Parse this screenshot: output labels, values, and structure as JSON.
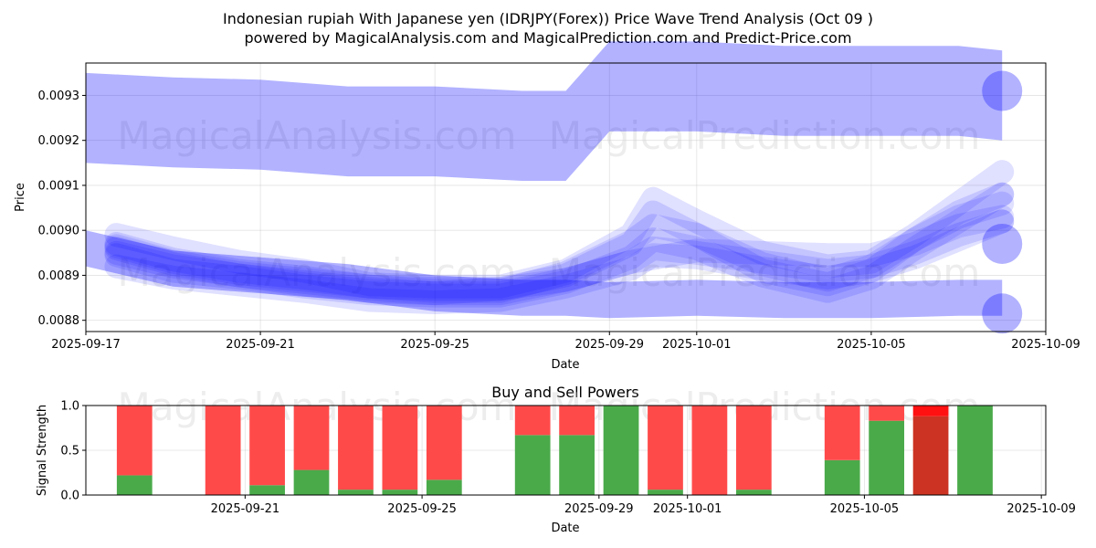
{
  "title_line1": "Indonesian rupiah With Japanese yen (IDRJPY(Forex)) Price Wave Trend Analysis (Oct 09 )",
  "title_line2": "powered by MagicalAnalysis.com and MagicalPrediction.com and Predict-Price.com",
  "watermark_left": "MagicalAnalysis.com",
  "watermark_right": "MagicalPrediction.com",
  "colors": {
    "wave": "#0000ff",
    "buy": "#4aaa4a",
    "sell": "#ff4a4a",
    "buy_dark": "#cc3322",
    "sell_bright": "#ff1111"
  },
  "chart_data": [
    {
      "type": "line",
      "title": "",
      "xlabel": "Date",
      "ylabel": "Price",
      "x_start": "2025-09-17",
      "x_end": "2025-10-09",
      "xlim_days": [
        0,
        22
      ],
      "ylim": [
        0.008775,
        0.009372
      ],
      "x_ticks": [
        {
          "day": 0,
          "label": "2025-09-17"
        },
        {
          "day": 4,
          "label": "2025-09-21"
        },
        {
          "day": 8,
          "label": "2025-09-25"
        },
        {
          "day": 12,
          "label": "2025-09-29"
        },
        {
          "day": 14,
          "label": "2025-10-01"
        },
        {
          "day": 18,
          "label": "2025-10-05"
        },
        {
          "day": 22,
          "label": "2025-10-09"
        }
      ],
      "y_ticks": [
        {
          "value": 0.0088,
          "label": "0.0088"
        },
        {
          "value": 0.0089,
          "label": "0.0089"
        },
        {
          "value": 0.009,
          "label": "0.0090"
        },
        {
          "value": 0.0091,
          "label": "0.0091"
        },
        {
          "value": 0.0092,
          "label": "0.0092"
        },
        {
          "value": 0.0093,
          "label": "0.0093"
        }
      ],
      "grid": true,
      "bands": [
        {
          "name": "upper-wave",
          "x": [
            0,
            2,
            4,
            6,
            8,
            10,
            11,
            12,
            14,
            16,
            18,
            20,
            21
          ],
          "center": [
            0.00925,
            0.00924,
            0.009235,
            0.00922,
            0.00922,
            0.00921,
            0.00921,
            0.00932,
            0.00932,
            0.00931,
            0.00931,
            0.00931,
            0.0093
          ],
          "half": 0.0001
        },
        {
          "name": "lower-wave",
          "x": [
            0,
            2,
            4,
            6,
            8,
            10,
            11,
            12,
            14,
            16,
            18,
            20,
            21
          ],
          "center": [
            0.00896,
            0.008915,
            0.0089,
            0.008885,
            0.00886,
            0.00885,
            0.00885,
            0.008845,
            0.00885,
            0.008845,
            0.008845,
            0.00885,
            0.00885
          ],
          "half": 4e-05
        }
      ],
      "series": [
        {
          "name": "wave-1",
          "x": [
            0.7,
            2,
            3.5,
            5,
            6.5,
            8,
            9.5,
            11,
            12.5,
            14,
            15.5,
            17,
            18,
            19,
            20,
            21
          ],
          "values": [
            0.008965,
            0.00893,
            0.008905,
            0.00889,
            0.008875,
            0.00887,
            0.00887,
            0.00889,
            0.00893,
            0.008955,
            0.00895,
            0.008945,
            0.008945,
            0.00897,
            0.00901,
            0.00903
          ]
        },
        {
          "name": "wave-2",
          "x": [
            0.7,
            2,
            3.5,
            5,
            6.5,
            8,
            9.5,
            11,
            12.5,
            13,
            14,
            15.5,
            17,
            18,
            19,
            20,
            21
          ],
          "values": [
            0.00899,
            0.00896,
            0.00893,
            0.00891,
            0.00888,
            0.008875,
            0.008875,
            0.00891,
            0.00899,
            0.00907,
            0.00902,
            0.00895,
            0.00892,
            0.00893,
            0.00899,
            0.00906,
            0.00913
          ]
        },
        {
          "name": "wave-3",
          "x": [
            0.7,
            2,
            3.5,
            5,
            6.5,
            8,
            9.5,
            11,
            12.5,
            13,
            14,
            15.5,
            17,
            18,
            19,
            20,
            21
          ],
          "values": [
            0.00895,
            0.00892,
            0.0089,
            0.00888,
            0.008865,
            0.00886,
            0.00887,
            0.0089,
            0.00897,
            0.00904,
            0.00899,
            0.00891,
            0.00888,
            0.00891,
            0.00898,
            0.00904,
            0.00908
          ]
        },
        {
          "name": "wave-4",
          "x": [
            0.7,
            2,
            3.5,
            5,
            6.5,
            8,
            9.5,
            11,
            12.5,
            13,
            14,
            15.5,
            17,
            18,
            19,
            20,
            21
          ],
          "values": [
            0.008945,
            0.00891,
            0.008895,
            0.008875,
            0.00886,
            0.008855,
            0.008855,
            0.008885,
            0.00894,
            0.00898,
            0.00896,
            0.0089,
            0.008865,
            0.008895,
            0.00896,
            0.00902,
            0.00908
          ]
        },
        {
          "name": "wave-5",
          "x": [
            0.7,
            2,
            3.5,
            5,
            6.5,
            8,
            9.5,
            11,
            12.5,
            13,
            14,
            15.5,
            17,
            18,
            19,
            20,
            21
          ],
          "values": [
            0.00897,
            0.008935,
            0.00891,
            0.008895,
            0.008875,
            0.008865,
            0.008865,
            0.008905,
            0.008975,
            0.00901,
            0.00899,
            0.008925,
            0.00889,
            0.00892,
            0.00898,
            0.00903,
            0.00906
          ]
        },
        {
          "name": "wave-6",
          "x": [
            0.7,
            2,
            3.5,
            5,
            6.5,
            8,
            9.5,
            11,
            12.5,
            13,
            14,
            15.5,
            17,
            18,
            19,
            20,
            21
          ],
          "values": [
            0.00896,
            0.008925,
            0.0089,
            0.008885,
            0.00887,
            0.00886,
            0.00886,
            0.00889,
            0.00893,
            0.00896,
            0.00895,
            0.00893,
            0.00891,
            0.00892,
            0.00895,
            0.00899,
            0.00902
          ]
        },
        {
          "name": "wave-7",
          "x": [
            0.7,
            2,
            3.5,
            5,
            6.5,
            8,
            9.5,
            11,
            12.5,
            13,
            14,
            15.5,
            17,
            18,
            19,
            20,
            21
          ],
          "values": [
            0.00892,
            0.008895,
            0.00888,
            0.008865,
            0.008845,
            0.00884,
            0.008845,
            0.008875,
            0.008915,
            0.008945,
            0.00894,
            0.008915,
            0.008895,
            0.00891,
            0.00894,
            0.00898,
            0.00902
          ]
        }
      ],
      "end_circles": [
        {
          "day": 21,
          "value": 0.00931
        },
        {
          "day": 21,
          "value": 0.008815
        },
        {
          "day": 21,
          "value": 0.00897
        }
      ]
    },
    {
      "type": "bar",
      "title": "Buy and Sell Powers",
      "xlabel": "Date",
      "ylabel": "Signal Strength",
      "xlim_days": [
        -0.1,
        21.6
      ],
      "ylim": [
        0,
        1
      ],
      "x_ticks": [
        {
          "day": 3.5,
          "label": "2025-09-21"
        },
        {
          "day": 7.5,
          "label": "2025-09-25"
        },
        {
          "day": 11.5,
          "label": "2025-09-29"
        },
        {
          "day": 13.5,
          "label": "2025-10-01"
        },
        {
          "day": 17.5,
          "label": "2025-10-05"
        },
        {
          "day": 21.5,
          "label": "2025-10-09"
        }
      ],
      "y_ticks": [
        {
          "value": 0,
          "label": "0.0"
        },
        {
          "value": 0.5,
          "label": "0.5"
        },
        {
          "value": 1,
          "label": "1.0"
        }
      ],
      "grid": true,
      "bars": [
        {
          "date": "2025-09-18",
          "day": 1,
          "buy": 0.22,
          "sell": 0.78
        },
        {
          "date": "2025-09-20",
          "day": 3,
          "buy": 0.0,
          "sell": 1.0
        },
        {
          "date": "2025-09-21",
          "day": 4,
          "buy": 0.11,
          "sell": 0.89
        },
        {
          "date": "2025-09-22",
          "day": 5,
          "buy": 0.28,
          "sell": 0.72
        },
        {
          "date": "2025-09-23",
          "day": 6,
          "buy": 0.06,
          "sell": 0.94
        },
        {
          "date": "2025-09-24",
          "day": 7,
          "buy": 0.06,
          "sell": 0.94
        },
        {
          "date": "2025-09-25",
          "day": 8,
          "buy": 0.17,
          "sell": 0.83
        },
        {
          "date": "2025-09-27",
          "day": 10,
          "buy": 0.67,
          "sell": 0.33
        },
        {
          "date": "2025-09-28",
          "day": 11,
          "buy": 0.67,
          "sell": 0.33
        },
        {
          "date": "2025-09-29",
          "day": 12,
          "buy": 1.0,
          "sell": 0.0
        },
        {
          "date": "2025-09-30",
          "day": 13,
          "buy": 0.06,
          "sell": 0.94
        },
        {
          "date": "2025-10-01",
          "day": 14,
          "buy": 0.0,
          "sell": 1.0
        },
        {
          "date": "2025-10-02",
          "day": 15,
          "buy": 0.06,
          "sell": 0.94
        },
        {
          "date": "2025-10-04",
          "day": 17,
          "buy": 0.39,
          "sell": 0.61
        },
        {
          "date": "2025-10-05",
          "day": 18,
          "buy": 0.83,
          "sell": 0.17
        },
        {
          "date": "2025-10-06",
          "day": 19,
          "buy": 0.88,
          "sell": 0.12,
          "highlight": true
        },
        {
          "date": "2025-10-07",
          "day": 20,
          "buy": 1.0,
          "sell": 0.0
        }
      ]
    }
  ]
}
